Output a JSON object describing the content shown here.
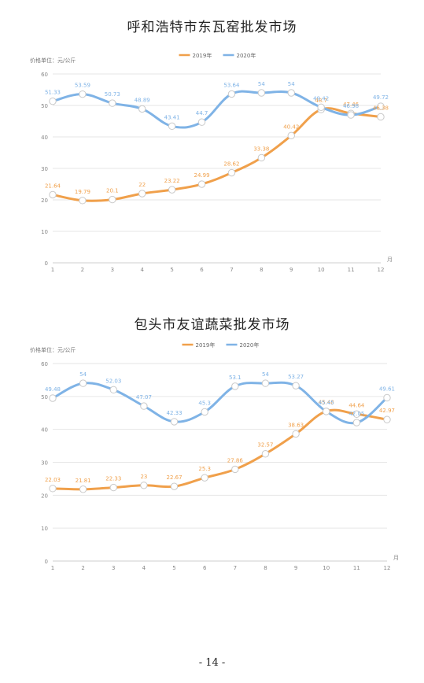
{
  "chart_data": [
    {
      "type": "line",
      "title": "呼和浩特市东瓦窑批发市场",
      "unit_label": "价格单位：元/公斤",
      "xlabel": "月",
      "x": [
        1,
        2,
        3,
        4,
        5,
        6,
        7,
        8,
        9,
        10,
        11,
        12
      ],
      "ylim": [
        0,
        60
      ],
      "yticks": [
        0,
        10,
        20,
        30,
        40,
        50,
        60
      ],
      "grid": true,
      "legend": "top-center",
      "series": [
        {
          "name": "2019年",
          "color": "#f0a04b",
          "values": [
            21.64,
            19.79,
            20.1,
            22,
            23.22,
            24.99,
            28.62,
            33.38,
            40.42,
            48.7,
            47.46,
            46.38
          ]
        },
        {
          "name": "2020年",
          "color": "#7fb3e6",
          "values": [
            51.33,
            53.59,
            50.73,
            48.89,
            43.41,
            44.7,
            53.64,
            54,
            54,
            49.42,
            46.98,
            49.72
          ]
        }
      ]
    },
    {
      "type": "line",
      "title": "包头市友谊蔬菜批发市场",
      "unit_label": "价格单位：元/公斤",
      "xlabel": "月",
      "x": [
        1,
        2,
        3,
        4,
        5,
        6,
        7,
        8,
        9,
        10,
        11,
        12
      ],
      "ylim": [
        0,
        60
      ],
      "yticks": [
        0,
        10,
        20,
        30,
        40,
        50,
        60
      ],
      "grid": true,
      "legend": "top-center",
      "series": [
        {
          "name": "2019年",
          "color": "#f0a04b",
          "values": [
            22.03,
            21.81,
            22.33,
            23,
            22.67,
            25.3,
            27.86,
            32.57,
            38.63,
            45.48,
            44.64,
            42.97
          ]
        },
        {
          "name": "2020年",
          "color": "#7fb3e6",
          "values": [
            49.48,
            54,
            52.03,
            47.07,
            42.33,
            45.3,
            53.1,
            54,
            53.27,
            45.45,
            42.05,
            49.61
          ]
        }
      ]
    }
  ],
  "page_number": "- 14 -"
}
